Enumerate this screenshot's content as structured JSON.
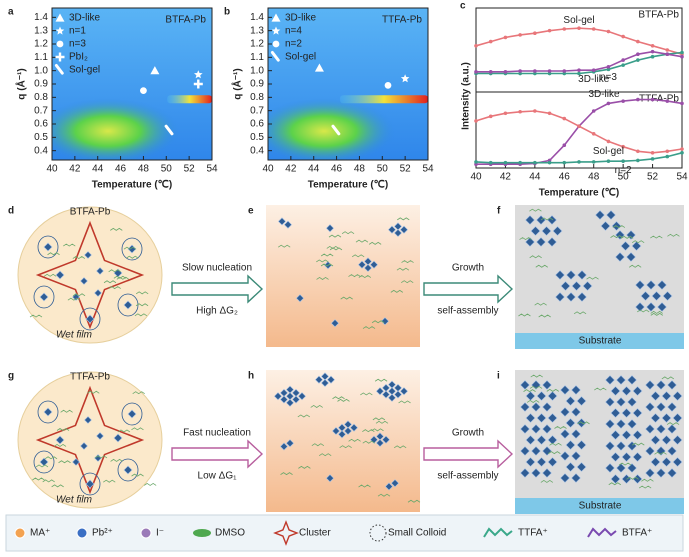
{
  "chart_data": [
    {
      "type": "heatmap",
      "panel_label": "a",
      "title": "BTFA-Pb",
      "x_label": "Temperature (℃)",
      "y_label": "q (Å⁻¹)",
      "xlim": [
        40,
        54
      ],
      "xticks": [
        40,
        42,
        44,
        46,
        48,
        50,
        52,
        54
      ],
      "ylim": [
        0.33,
        1.47
      ],
      "yticks": [
        0.4,
        0.5,
        0.6,
        0.7,
        0.8,
        0.9,
        {
          "value": 1,
          "label": "1.0"
        },
        1.1,
        1.2,
        1.3,
        1.4
      ],
      "legend": "upper left",
      "series": [
        {
          "name": "3D-like",
          "marker": "triangle",
          "color": "#ffffff",
          "x": [
            49
          ],
          "y": [
            1.0
          ]
        },
        {
          "name": "n=1",
          "marker": "star",
          "color": "#ffffff",
          "x": [
            52.8
          ],
          "y": [
            0.97
          ]
        },
        {
          "name": "n=3",
          "marker": "circle",
          "color": "#ffffff",
          "x": [
            48
          ],
          "y": [
            0.85
          ]
        },
        {
          "name": "PbI₂",
          "marker": "plus",
          "color": "#ffffff",
          "x": [
            52.8
          ],
          "y": [
            0.9
          ]
        },
        {
          "name": "Sol-gel",
          "marker": "brush",
          "color": "#ffffff",
          "x": [
            50.3
          ],
          "y": [
            0.55
          ]
        }
      ]
    },
    {
      "type": "heatmap",
      "panel_label": "b",
      "title": "TTFA-Pb",
      "x_label": "Temperature (℃)",
      "y_label": "q (Å⁻¹)",
      "xlim": [
        40,
        54
      ],
      "xticks": [
        40,
        42,
        44,
        46,
        48,
        50,
        52,
        54
      ],
      "ylim": [
        0.33,
        1.47
      ],
      "yticks": [
        0.4,
        0.5,
        0.6,
        0.7,
        0.8,
        0.9,
        {
          "value": 1,
          "label": "1.0"
        },
        1.1,
        1.2,
        1.3,
        1.4
      ],
      "legend": "upper left",
      "series": [
        {
          "name": "3D-like",
          "marker": "triangle",
          "color": "#ffffff",
          "x": [
            44.5
          ],
          "y": [
            1.02
          ]
        },
        {
          "name": "n=4",
          "marker": "star",
          "color": "#ffffff",
          "x": [
            52
          ],
          "y": [
            0.94
          ]
        },
        {
          "name": "n=2",
          "marker": "circle",
          "color": "#ffffff",
          "x": [
            50.5
          ],
          "y": [
            0.89
          ]
        },
        {
          "name": "Sol-gel",
          "marker": "brush",
          "color": "#ffffff",
          "x": [
            46
          ],
          "y": [
            0.55
          ]
        }
      ]
    },
    {
      "type": "line",
      "panel_label": "c",
      "title": "BTFA-Pb",
      "y_label": "Intensity (a.u.)",
      "x": [
        40,
        41,
        42,
        43,
        44,
        45,
        46,
        47,
        48,
        49,
        50,
        51,
        52,
        53,
        54
      ],
      "xlim": [
        40,
        54
      ],
      "ylim": [
        0,
        1
      ],
      "series": [
        {
          "name": "Sol-gel",
          "color": "#e8767a",
          "values": [
            0.55,
            0.6,
            0.65,
            0.68,
            0.7,
            0.73,
            0.75,
            0.76,
            0.75,
            0.72,
            0.66,
            0.6,
            0.55,
            0.5,
            0.45
          ]
        },
        {
          "name": "n=3",
          "color": "#3a9e8a",
          "values": [
            0.22,
            0.22,
            0.22,
            0.22,
            0.22,
            0.22,
            0.22,
            0.22,
            0.24,
            0.27,
            0.32,
            0.38,
            0.42,
            0.45,
            0.47
          ]
        },
        {
          "name": "3D-like",
          "color": "#9a4fa8",
          "values": [
            0.24,
            0.24,
            0.24,
            0.25,
            0.25,
            0.25,
            0.25,
            0.26,
            0.26,
            0.3,
            0.38,
            0.45,
            0.48,
            0.45,
            0.42
          ]
        }
      ]
    },
    {
      "type": "line",
      "title": "TTFA-Pb",
      "x_label": "Temperature (℃)",
      "x": [
        40,
        41,
        42,
        43,
        44,
        45,
        46,
        47,
        48,
        49,
        50,
        51,
        52,
        53,
        54
      ],
      "xlim": [
        40,
        54
      ],
      "xticks": [
        40,
        42,
        44,
        46,
        48,
        50,
        52,
        54
      ],
      "ylim": [
        0,
        1
      ],
      "series": [
        {
          "name": "3D-like",
          "color": "#9a4fa8",
          "values": [
            0.05,
            0.05,
            0.05,
            0.05,
            0.06,
            0.1,
            0.3,
            0.55,
            0.75,
            0.85,
            0.88,
            0.9,
            0.9,
            0.88,
            0.85
          ]
        },
        {
          "name": "Sol-gel",
          "color": "#e8767a",
          "values": [
            0.62,
            0.68,
            0.72,
            0.74,
            0.75,
            0.72,
            0.65,
            0.55,
            0.45,
            0.35,
            0.28,
            0.22,
            0.2,
            0.22,
            0.25
          ]
        },
        {
          "name": "n=2",
          "color": "#3a9e8a",
          "values": [
            0.08,
            0.07,
            0.07,
            0.07,
            0.07,
            0.07,
            0.07,
            0.08,
            0.08,
            0.09,
            0.09,
            0.1,
            0.12,
            0.15,
            0.2
          ]
        }
      ]
    }
  ],
  "schematic": {
    "rows": [
      {
        "panels": [
          "d",
          "e",
          "f"
        ],
        "film_label": "BTFA-Pb",
        "wet_film": "Wet film",
        "arrow1_top": "Slow nucleation",
        "arrow1_bottom": "High ΔG₂",
        "arrow2_top": "Growth",
        "arrow2_bottom": "self-assembly",
        "substrate": "Substrate"
      },
      {
        "panels": [
          "g",
          "h",
          "i"
        ],
        "film_label": "TTFA-Pb",
        "wet_film": "Wet film",
        "arrow1_top": "Fast nucleation",
        "arrow1_bottom": "Low ΔG₁",
        "arrow2_top": "Growth",
        "arrow2_bottom": "self-assembly",
        "substrate": "Substrate"
      }
    ],
    "legend": [
      "MA⁺",
      "Pb²⁺",
      "I⁻",
      "DMSO",
      "Cluster",
      "Small Colloid",
      "TTFA⁺",
      "BTFA⁺"
    ]
  }
}
